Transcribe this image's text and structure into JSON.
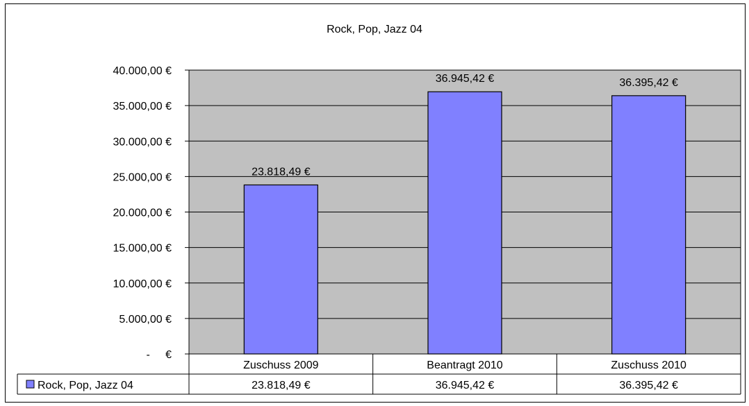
{
  "chart_data": {
    "type": "bar",
    "title": "Rock, Pop, Jazz 04",
    "categories": [
      "Zuschuss 2009",
      "Beantragt 2010",
      "Zuschuss 2010"
    ],
    "series": [
      {
        "name": "Rock, Pop, Jazz 04",
        "values": [
          23818.49,
          36945.42,
          36395.42
        ],
        "labels": [
          "23.818,49 €",
          "36.945,42 €",
          "36.395,42 €"
        ]
      }
    ],
    "ylim": [
      0,
      40000
    ],
    "ytick_labels": [
      "-     €",
      "5.000,00 €",
      "10.000,00 €",
      "15.000,00 €",
      "20.000,00 €",
      "25.000,00 €",
      "30.000,00 €",
      "35.000,00 €",
      "40.000,00 €"
    ],
    "grid": true,
    "legend": "data-table",
    "data_table": true
  },
  "colors": {
    "plot_background": "#c0c0c0",
    "bar_fill": "#8080ff",
    "bar_stroke": "#000000",
    "frame": "#000000"
  }
}
